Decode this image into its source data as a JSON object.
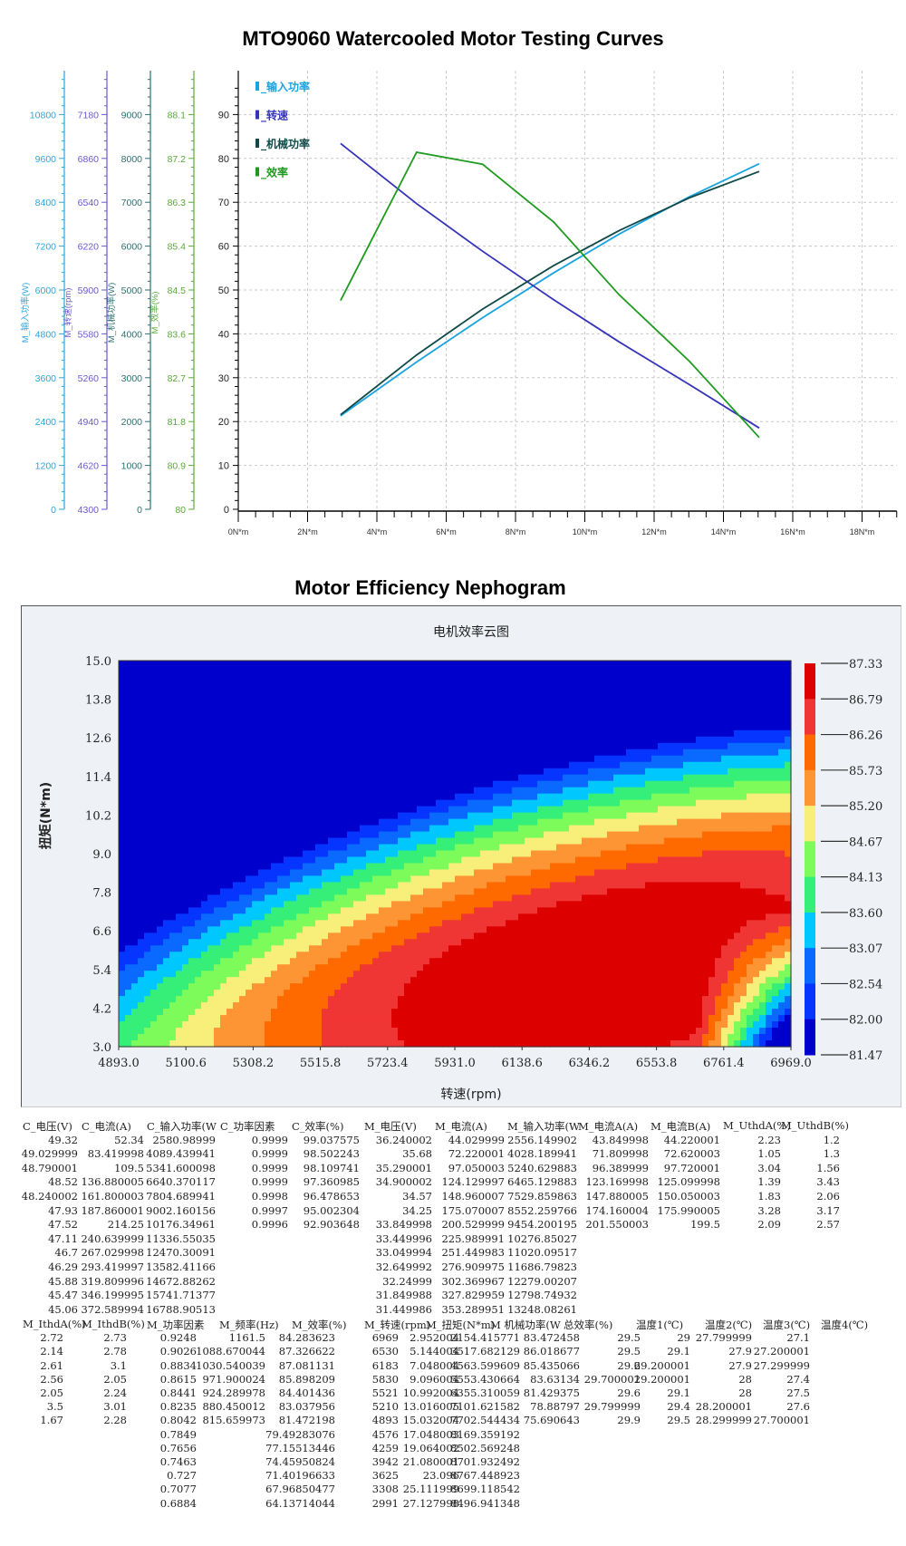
{
  "titles": {
    "main": "MTO9060 Watercooled Motor Testing Curves",
    "nephogram": "Motor Efficiency Nephogram"
  },
  "chart_data": [
    {
      "type": "line",
      "title": "MTO9060 Watercooled Motor Testing Curves",
      "xlabel": "N*m",
      "x_ticks": [
        "0N*m",
        "2N*m",
        "4N*m",
        "6N*m",
        "8N*m",
        "10N*m",
        "12N*m",
        "14N*m",
        "16N*m",
        "18N*m"
      ],
      "xlim": [
        0,
        19
      ],
      "main_axis": {
        "ylim": [
          0,
          100
        ],
        "ticks": [
          "0",
          "10",
          "20",
          "30",
          "40",
          "50",
          "60",
          "70",
          "80",
          "90"
        ]
      },
      "grid": true,
      "legend_position": "top-left",
      "axes": [
        {
          "label": "M_输入功率(W)",
          "color": "#2aa6dc",
          "min": 0,
          "max": 12000,
          "ticks": [
            "0",
            "1200",
            "2400",
            "3600",
            "4800",
            "6000",
            "7200",
            "8400",
            "9600",
            "10800"
          ]
        },
        {
          "label": "M_转速(rpm)",
          "color": "#6a5acd",
          "min": 4300,
          "max": 7500,
          "ticks": [
            "4300",
            "4620",
            "4940",
            "5260",
            "5580",
            "5900",
            "6220",
            "6540",
            "6860",
            "7180"
          ]
        },
        {
          "label": "M_机械功率(W)",
          "color": "#2f6f6f",
          "min": 0,
          "max": 10000,
          "ticks": [
            "0",
            "1000",
            "2000",
            "3000",
            "4000",
            "5000",
            "6000",
            "7000",
            "8000",
            "9000"
          ]
        },
        {
          "label": "M_效率(%)",
          "color": "#5aaa3a",
          "min": 80,
          "max": 89,
          "ticks": [
            "80",
            "80.9",
            "81.8",
            "82.7",
            "83.6",
            "84.5",
            "85.4",
            "86.3",
            "87.2",
            "88.1"
          ]
        }
      ],
      "x": [
        2.952004,
        5.144004,
        7.048004,
        9.096004,
        10.992004,
        13.016005,
        15.032004
      ],
      "series": [
        {
          "name": "M_输入功率",
          "axis": 0,
          "color": "#1aa3e0",
          "values": [
            2556.149902,
            4028.189941,
            5240.629883,
            6465.129883,
            7529.859863,
            8552.259766,
            9454.200195
          ]
        },
        {
          "name": "M_转速",
          "axis": 1,
          "color": "#3434b8",
          "values": [
            6969,
            6530,
            6183,
            5830,
            5521,
            5210,
            4893
          ]
        },
        {
          "name": "M_机械功率",
          "axis": 2,
          "color": "#0f4a48",
          "values": [
            2154.415771,
            3517.682129,
            4563.599609,
            5553.430664,
            6355.310059,
            7101.621582,
            7702.544434
          ]
        },
        {
          "name": "M_效率",
          "axis": 3,
          "color": "#1e9a1e",
          "values": [
            84.283623,
            87.326622,
            87.081131,
            85.898209,
            84.401436,
            83.037956,
            81.472198
          ]
        }
      ]
    },
    {
      "type": "heatmap",
      "title": "电机效率云图",
      "xlabel": "转速(rpm)",
      "ylabel": "扭矩(N*m)",
      "x_ticks": [
        "4893.0",
        "5100.6",
        "5308.2",
        "5515.8",
        "5723.4",
        "5931.0",
        "6138.6",
        "6346.2",
        "6553.8",
        "6761.4",
        "6969.0"
      ],
      "y_ticks": [
        "3.0",
        "4.2",
        "5.4",
        "6.6",
        "7.8",
        "9.0",
        "10.2",
        "11.4",
        "12.6",
        "13.8",
        "15.0"
      ],
      "xlim": [
        4893.0,
        6969.0
      ],
      "ylim": [
        3.0,
        15.0
      ],
      "colorbar": {
        "labels": [
          "87.33",
          "86.79",
          "86.26",
          "85.73",
          "85.20",
          "84.67",
          "84.13",
          "83.60",
          "83.07",
          "82.54",
          "82.00",
          "81.47"
        ],
        "colors": [
          "#dd0000",
          "#f03535",
          "#ff6a00",
          "#fd9535",
          "#f7ef7a",
          "#7dfb5a",
          "#35ef78",
          "#00c8ff",
          "#0a6aff",
          "#0535ff",
          "#0000cc"
        ]
      },
      "samples": [
        {
          "rpm": 6969,
          "torque": 2.952004,
          "eff": 84.283623
        },
        {
          "rpm": 6530,
          "torque": 5.144004,
          "eff": 87.326622
        },
        {
          "rpm": 6183,
          "torque": 7.048004,
          "eff": 87.081131
        },
        {
          "rpm": 5830,
          "torque": 9.096004,
          "eff": 85.898209
        },
        {
          "rpm": 5521,
          "torque": 10.992004,
          "eff": 84.401436
        },
        {
          "rpm": 5210,
          "torque": 13.016005,
          "eff": 83.037956
        },
        {
          "rpm": 4893,
          "torque": 15.032004,
          "eff": 81.472198
        }
      ]
    }
  ],
  "table1": {
    "headers": [
      "C_电压(V)",
      "C_电流(A)",
      "C_输入功率(W",
      "C_功率因素",
      "C_效率(%)",
      "M_电压(V)",
      "M_电流(A)",
      "M_输入功率(W",
      "M_电流A(A)",
      "M_电流B(A)",
      "M_UthdA(%)",
      "M_UthdB(%)"
    ],
    "rows": [
      [
        "49.32",
        "52.34",
        "2580.98999",
        "0.9999",
        "99.037575",
        "36.240002",
        "44.029999",
        "2556.149902",
        "43.849998",
        "44.220001",
        "2.23",
        "1.2"
      ],
      [
        "49.029999",
        "83.419998",
        "4089.439941",
        "0.9999",
        "98.502243",
        "35.68",
        "72.220001",
        "4028.189941",
        "71.809998",
        "72.620003",
        "1.05",
        "1.3"
      ],
      [
        "48.790001",
        "109.5",
        "5341.600098",
        "0.9999",
        "98.109741",
        "35.290001",
        "97.050003",
        "5240.629883",
        "96.389999",
        "97.720001",
        "3.04",
        "1.56"
      ],
      [
        "48.52",
        "136.880005",
        "6640.370117",
        "0.9999",
        "97.360985",
        "34.900002",
        "124.129997",
        "6465.129883",
        "123.169998",
        "125.099998",
        "1.39",
        "3.43"
      ],
      [
        "48.240002",
        "161.800003",
        "7804.689941",
        "0.9998",
        "96.478653",
        "34.57",
        "148.960007",
        "7529.859863",
        "147.880005",
        "150.050003",
        "1.83",
        "2.06"
      ],
      [
        "47.93",
        "187.860001",
        "9002.160156",
        "0.9997",
        "95.002304",
        "34.25",
        "175.070007",
        "8552.259766",
        "174.160004",
        "175.990005",
        "3.28",
        "3.17"
      ],
      [
        "47.52",
        "214.25",
        "10176.34961",
        "0.9996",
        "92.903648",
        "33.849998",
        "200.529999",
        "9454.200195",
        "201.550003",
        "199.5",
        "2.09",
        "2.57"
      ],
      [
        "47.11",
        "240.639999",
        "11336.55035",
        "",
        "",
        "33.449996",
        "225.989991",
        "10276.85027",
        "",
        "",
        "",
        ""
      ],
      [
        "46.7",
        "267.029998",
        "12470.30091",
        "",
        "",
        "33.049994",
        "251.449983",
        "11020.09517",
        "",
        "",
        "",
        ""
      ],
      [
        "46.29",
        "293.419997",
        "13582.41166",
        "",
        "",
        "32.649992",
        "276.909975",
        "11686.79823",
        "",
        "",
        "",
        ""
      ],
      [
        "45.88",
        "319.809996",
        "14672.88262",
        "",
        "",
        "32.24999",
        "302.369967",
        "12279.00207",
        "",
        "",
        "",
        ""
      ],
      [
        "45.47",
        "346.199995",
        "15741.71377",
        "",
        "",
        "31.849988",
        "327.829959",
        "12798.74932",
        "",
        "",
        "",
        ""
      ],
      [
        "45.06",
        "372.589994",
        "16788.90513",
        "",
        "",
        "31.449986",
        "353.289951",
        "13248.08261",
        "",
        "",
        "",
        ""
      ]
    ]
  },
  "table2": {
    "headers": [
      "M_IthdA(%)",
      "M_IthdB(%)",
      "M_功率因素",
      "M_频率(Hz)",
      "M_效率(%)",
      "M_转速(rpm)",
      "M_扭矩(N*m)",
      "M 机械功率(W",
      "总效率(%)",
      "温度1(℃)",
      "温度2(℃)",
      "温度3(℃)",
      "温度4(℃)"
    ],
    "rows": [
      [
        "2.72",
        "2.73",
        "0.9248",
        "1161.5",
        "84.283623",
        "6969",
        "2.952004",
        "2154.415771",
        "83.472458",
        "29.5",
        "29",
        "27.799999",
        "27.1"
      ],
      [
        "2.14",
        "2.78",
        "0.9026",
        "1088.670044",
        "87.326622",
        "6530",
        "5.144004",
        "3517.682129",
        "86.018677",
        "29.5",
        "29.1",
        "27.9",
        "27.200001"
      ],
      [
        "2.61",
        "3.1",
        "0.8834",
        "1030.540039",
        "87.081131",
        "6183",
        "7.048004",
        "4563.599609",
        "85.435066",
        "29.6",
        "29.200001",
        "27.9",
        "27.299999"
      ],
      [
        "2.56",
        "2.05",
        "0.8615",
        "971.900024",
        "85.898209",
        "5830",
        "9.096004",
        "5553.430664",
        "83.63134",
        "29.700001",
        "29.200001",
        "28",
        "27.4"
      ],
      [
        "2.05",
        "2.24",
        "0.8441",
        "924.289978",
        "84.401436",
        "5521",
        "10.992004",
        "6355.310059",
        "81.429375",
        "29.6",
        "29.1",
        "28",
        "27.5"
      ],
      [
        "3.5",
        "3.01",
        "0.8235",
        "880.450012",
        "83.037956",
        "5210",
        "13.016005",
        "7101.621582",
        "78.88797",
        "29.799999",
        "29.4",
        "28.200001",
        "27.6"
      ],
      [
        "1.67",
        "2.28",
        "0.8042",
        "815.659973",
        "81.472198",
        "4893",
        "15.032004",
        "7702.544434",
        "75.690643",
        "29.9",
        "29.5",
        "28.299999",
        "27.700001"
      ],
      [
        "",
        "",
        "0.7849",
        "",
        "79.49283076",
        "4576",
        "17.048003",
        "8169.359192",
        "",
        "",
        "",
        "",
        ""
      ],
      [
        "",
        "",
        "0.7656",
        "",
        "77.15513446",
        "4259",
        "19.064002",
        "8502.569248",
        "",
        "",
        "",
        "",
        ""
      ],
      [
        "",
        "",
        "0.7463",
        "",
        "74.45950824",
        "3942",
        "21.080001",
        "8701.932492",
        "",
        "",
        "",
        "",
        ""
      ],
      [
        "",
        "",
        "0.727",
        "",
        "71.40196633",
        "3625",
        "23.096",
        "8767.448923",
        "",
        "",
        "",
        "",
        ""
      ],
      [
        "",
        "",
        "0.7077",
        "",
        "67.96850477",
        "3308",
        "25.111999",
        "8699.118542",
        "",
        "",
        "",
        "",
        ""
      ],
      [
        "",
        "",
        "0.6884",
        "",
        "64.13714044",
        "2991",
        "27.127998",
        "8496.941348",
        "",
        "",
        "",
        "",
        ""
      ]
    ]
  }
}
